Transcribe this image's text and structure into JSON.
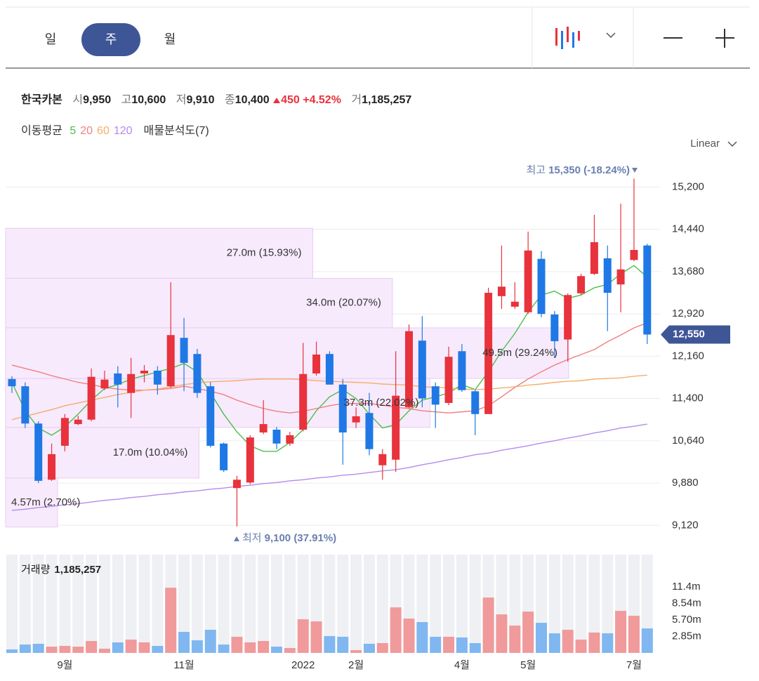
{
  "toolbar": {
    "tabs": [
      "일",
      "주",
      "월"
    ],
    "selected": 1
  },
  "stock_info": {
    "name": "한국카본",
    "open_label": "시",
    "open": "9,950",
    "high_label": "고",
    "high": "10,600",
    "low_label": "저",
    "low": "9,910",
    "close_label": "종",
    "close": "10,400",
    "change": "450",
    "change_pct": "+4.52%",
    "volume_label": "거",
    "volume": "1,185,257"
  },
  "indicators": {
    "ma_label": "이동평균",
    "profile_label": "매물분석도(7)",
    "scale_label": "Linear"
  },
  "chart_data": {
    "type": "candlestick",
    "up_color": "#e8323c",
    "down_color": "#1f78e6",
    "categories": [
      null,
      null,
      null,
      null,
      "9월",
      null,
      null,
      null,
      null,
      null,
      null,
      null,
      null,
      "11월",
      null,
      null,
      null,
      null,
      null,
      null,
      null,
      null,
      "2022",
      null,
      null,
      null,
      "2월",
      null,
      null,
      null,
      null,
      null,
      null,
      null,
      "4월",
      null,
      null,
      null,
      null,
      "5월",
      null,
      null,
      null,
      null,
      null,
      null,
      null,
      "7월",
      null
    ],
    "open": [
      11750,
      11620,
      10950,
      9940,
      10550,
      10940,
      11020,
      11580,
      11850,
      11500,
      11850,
      11900,
      11620,
      12490,
      12200,
      11620,
      10590,
      9790,
      9890,
      10790,
      10840,
      10590,
      10840,
      11850,
      12200,
      11650,
      10970,
      11140,
      10200,
      10300,
      11240,
      12440,
      11620,
      11320,
      12250,
      11530,
      11120,
      13240,
      13050,
      12950,
      13910,
      12910,
      12460,
      13290,
      13640,
      13920,
      13450,
      13890,
      14150
    ],
    "high": [
      11800,
      11690,
      10990,
      10590,
      11120,
      11090,
      11940,
      11900,
      11980,
      12130,
      12000,
      11980,
      13490,
      12850,
      12290,
      11690,
      10610,
      10010,
      10740,
      11370,
      10890,
      10800,
      12400,
      12420,
      12250,
      11750,
      11240,
      11500,
      10490,
      12250,
      12730,
      12880,
      11690,
      12330,
      12380,
      11560,
      13390,
      14150,
      13490,
      14400,
      14050,
      12970,
      13290,
      13640,
      14700,
      14150,
      14900,
      15350,
      14180
    ],
    "low": [
      11500,
      10870,
      9880,
      9920,
      10450,
      10920,
      10990,
      11550,
      11240,
      11050,
      11690,
      11470,
      11590,
      11530,
      11410,
      10520,
      10080,
      9100,
      9860,
      10760,
      10490,
      10550,
      10810,
      11810,
      11650,
      10210,
      10870,
      10380,
      9940,
      10080,
      11220,
      11240,
      10870,
      11280,
      11520,
      10740,
      11120,
      13010,
      13010,
      12920,
      12860,
      12130,
      12060,
      13260,
      13620,
      12610,
      12950,
      13870,
      12380
    ],
    "close": [
      11620,
      10950,
      9920,
      10400,
      11050,
      11020,
      11790,
      11740,
      11650,
      11840,
      11900,
      11650,
      12540,
      12040,
      11500,
      10550,
      10110,
      9940,
      10700,
      10940,
      10590,
      10740,
      11840,
      12190,
      11650,
      10790,
      11080,
      10490,
      10400,
      11450,
      12610,
      11400,
      11290,
      12150,
      11550,
      11120,
      13300,
      13410,
      13140,
      14060,
      12920,
      12430,
      13260,
      13600,
      14210,
      13300,
      13720,
      14070,
      12550
    ],
    "moving_averages": [
      {
        "name": "5",
        "color": "#4cbf4c",
        "values": [
          11690,
          11180,
          10870,
          10740,
          10890,
          11120,
          11370,
          11580,
          11650,
          11750,
          11810,
          11880,
          11940,
          12030,
          11880,
          11500,
          11120,
          10800,
          10550,
          10450,
          10450,
          10610,
          10840,
          11180,
          11430,
          11560,
          11400,
          11120,
          10870,
          10930,
          11180,
          11370,
          11430,
          11500,
          11650,
          11560,
          11880,
          12250,
          12570,
          12950,
          13260,
          13330,
          13200,
          13260,
          13390,
          13450,
          13640,
          13790,
          13580
        ]
      },
      {
        "name": "20",
        "color": "#f07f80",
        "values": [
          12000,
          11940,
          11880,
          11810,
          11750,
          11690,
          11650,
          11600,
          11570,
          11550,
          11550,
          11560,
          11580,
          11620,
          11580,
          11530,
          11470,
          11370,
          11290,
          11220,
          11170,
          11140,
          11170,
          11220,
          11270,
          11310,
          11310,
          11310,
          11280,
          11240,
          11220,
          11180,
          11160,
          11140,
          11160,
          11180,
          11270,
          11430,
          11600,
          11750,
          11880,
          12000,
          12100,
          12190,
          12280,
          12420,
          12540,
          12670,
          12760
        ]
      },
      {
        "name": "60",
        "color": "#f5ad6c",
        "values": [
          11020,
          11080,
          11140,
          11200,
          11270,
          11320,
          11370,
          11420,
          11470,
          11510,
          11550,
          11570,
          11610,
          11650,
          11680,
          11700,
          11710,
          11720,
          11740,
          11750,
          11750,
          11750,
          11740,
          11720,
          11710,
          11700,
          11690,
          11680,
          11660,
          11650,
          11640,
          11610,
          11600,
          11590,
          11570,
          11560,
          11570,
          11590,
          11610,
          11640,
          11660,
          11690,
          11710,
          11720,
          11750,
          11760,
          11770,
          11800,
          11820
        ]
      },
      {
        "name": "120",
        "color": "#b48af0",
        "values": [
          9390,
          9410,
          9440,
          9460,
          9490,
          9510,
          9540,
          9570,
          9590,
          9620,
          9640,
          9670,
          9690,
          9720,
          9740,
          9770,
          9790,
          9820,
          9840,
          9870,
          9890,
          9920,
          9940,
          9970,
          9990,
          10020,
          10040,
          10070,
          10100,
          10120,
          10160,
          10210,
          10250,
          10300,
          10340,
          10390,
          10420,
          10470,
          10510,
          10550,
          10600,
          10640,
          10690,
          10730,
          10780,
          10820,
          10870,
          10900,
          10940
        ]
      }
    ],
    "profile": [
      {
        "low": 13560,
        "high": 14460,
        "volume": 27.0,
        "label": "27.0m (15.93%)"
      },
      {
        "low": 12670,
        "high": 13560,
        "volume": 34.0,
        "label": "34.0m (20.07%)"
      },
      {
        "low": 11760,
        "high": 12670,
        "volume": 49.5,
        "label": "49.5m (29.24%)"
      },
      {
        "low": 10880,
        "high": 11760,
        "volume": 37.3,
        "label": "37.3m (22.02%)"
      },
      {
        "low": 9970,
        "high": 10880,
        "volume": 17.0,
        "label": "17.0m (10.04%)"
      },
      {
        "low": 9090,
        "high": 9970,
        "volume": 4.57,
        "label": "4.57m (2.70%)"
      }
    ],
    "ylim": [
      8720,
      15660
    ],
    "yticks": [
      {
        "value": 9120,
        "label": "9,120"
      },
      {
        "value": 9880,
        "label": "9,880"
      },
      {
        "value": 10640,
        "label": "10,640"
      },
      {
        "value": 11400,
        "label": "11,400"
      },
      {
        "value": 12160,
        "label": "12,160"
      },
      {
        "value": 12920,
        "label": "12,920"
      },
      {
        "value": 13680,
        "label": "13,680"
      },
      {
        "value": 14440,
        "label": "14,440"
      },
      {
        "value": 15200,
        "label": "15,200"
      }
    ],
    "grid": true,
    "current_price": {
      "value": 12550,
      "label": "12,550"
    },
    "high_marker": {
      "title": "최고",
      "text": "15,350 (-18.24%)"
    },
    "low_marker": {
      "title": "최저",
      "text": "9,100 (37.91%)"
    },
    "volume": {
      "title": "거래량",
      "current": "1,185,257",
      "up_color": "#f09a9b",
      "down_color": "#80b7f0",
      "values": [
        0.6,
        1.45,
        1.58,
        1.09,
        1.21,
        1.09,
        2.06,
        0.73,
        1.82,
        2.3,
        1.82,
        1.21,
        11.27,
        3.64,
        2.18,
        4,
        1.45,
        2.79,
        1.82,
        2.06,
        1.09,
        0.85,
        5.82,
        5.45,
        2.91,
        2.79,
        0.48,
        1.58,
        1.7,
        7.88,
        5.94,
        5.33,
        2.79,
        2.79,
        2.67,
        1.7,
        9.58,
        6.67,
        4.73,
        7.15,
        5.21,
        3.39,
        4,
        2.3,
        3.52,
        3.39,
        7.27,
        6.42,
        4.24
      ],
      "ylim": [
        0,
        17
      ],
      "yticks": [
        {
          "value": 2.85,
          "label": "2.85m"
        },
        {
          "value": 5.7,
          "label": "5.70m"
        },
        {
          "value": 8.54,
          "label": "8.54m"
        },
        {
          "value": 11.4,
          "label": "11.4m"
        }
      ]
    }
  }
}
